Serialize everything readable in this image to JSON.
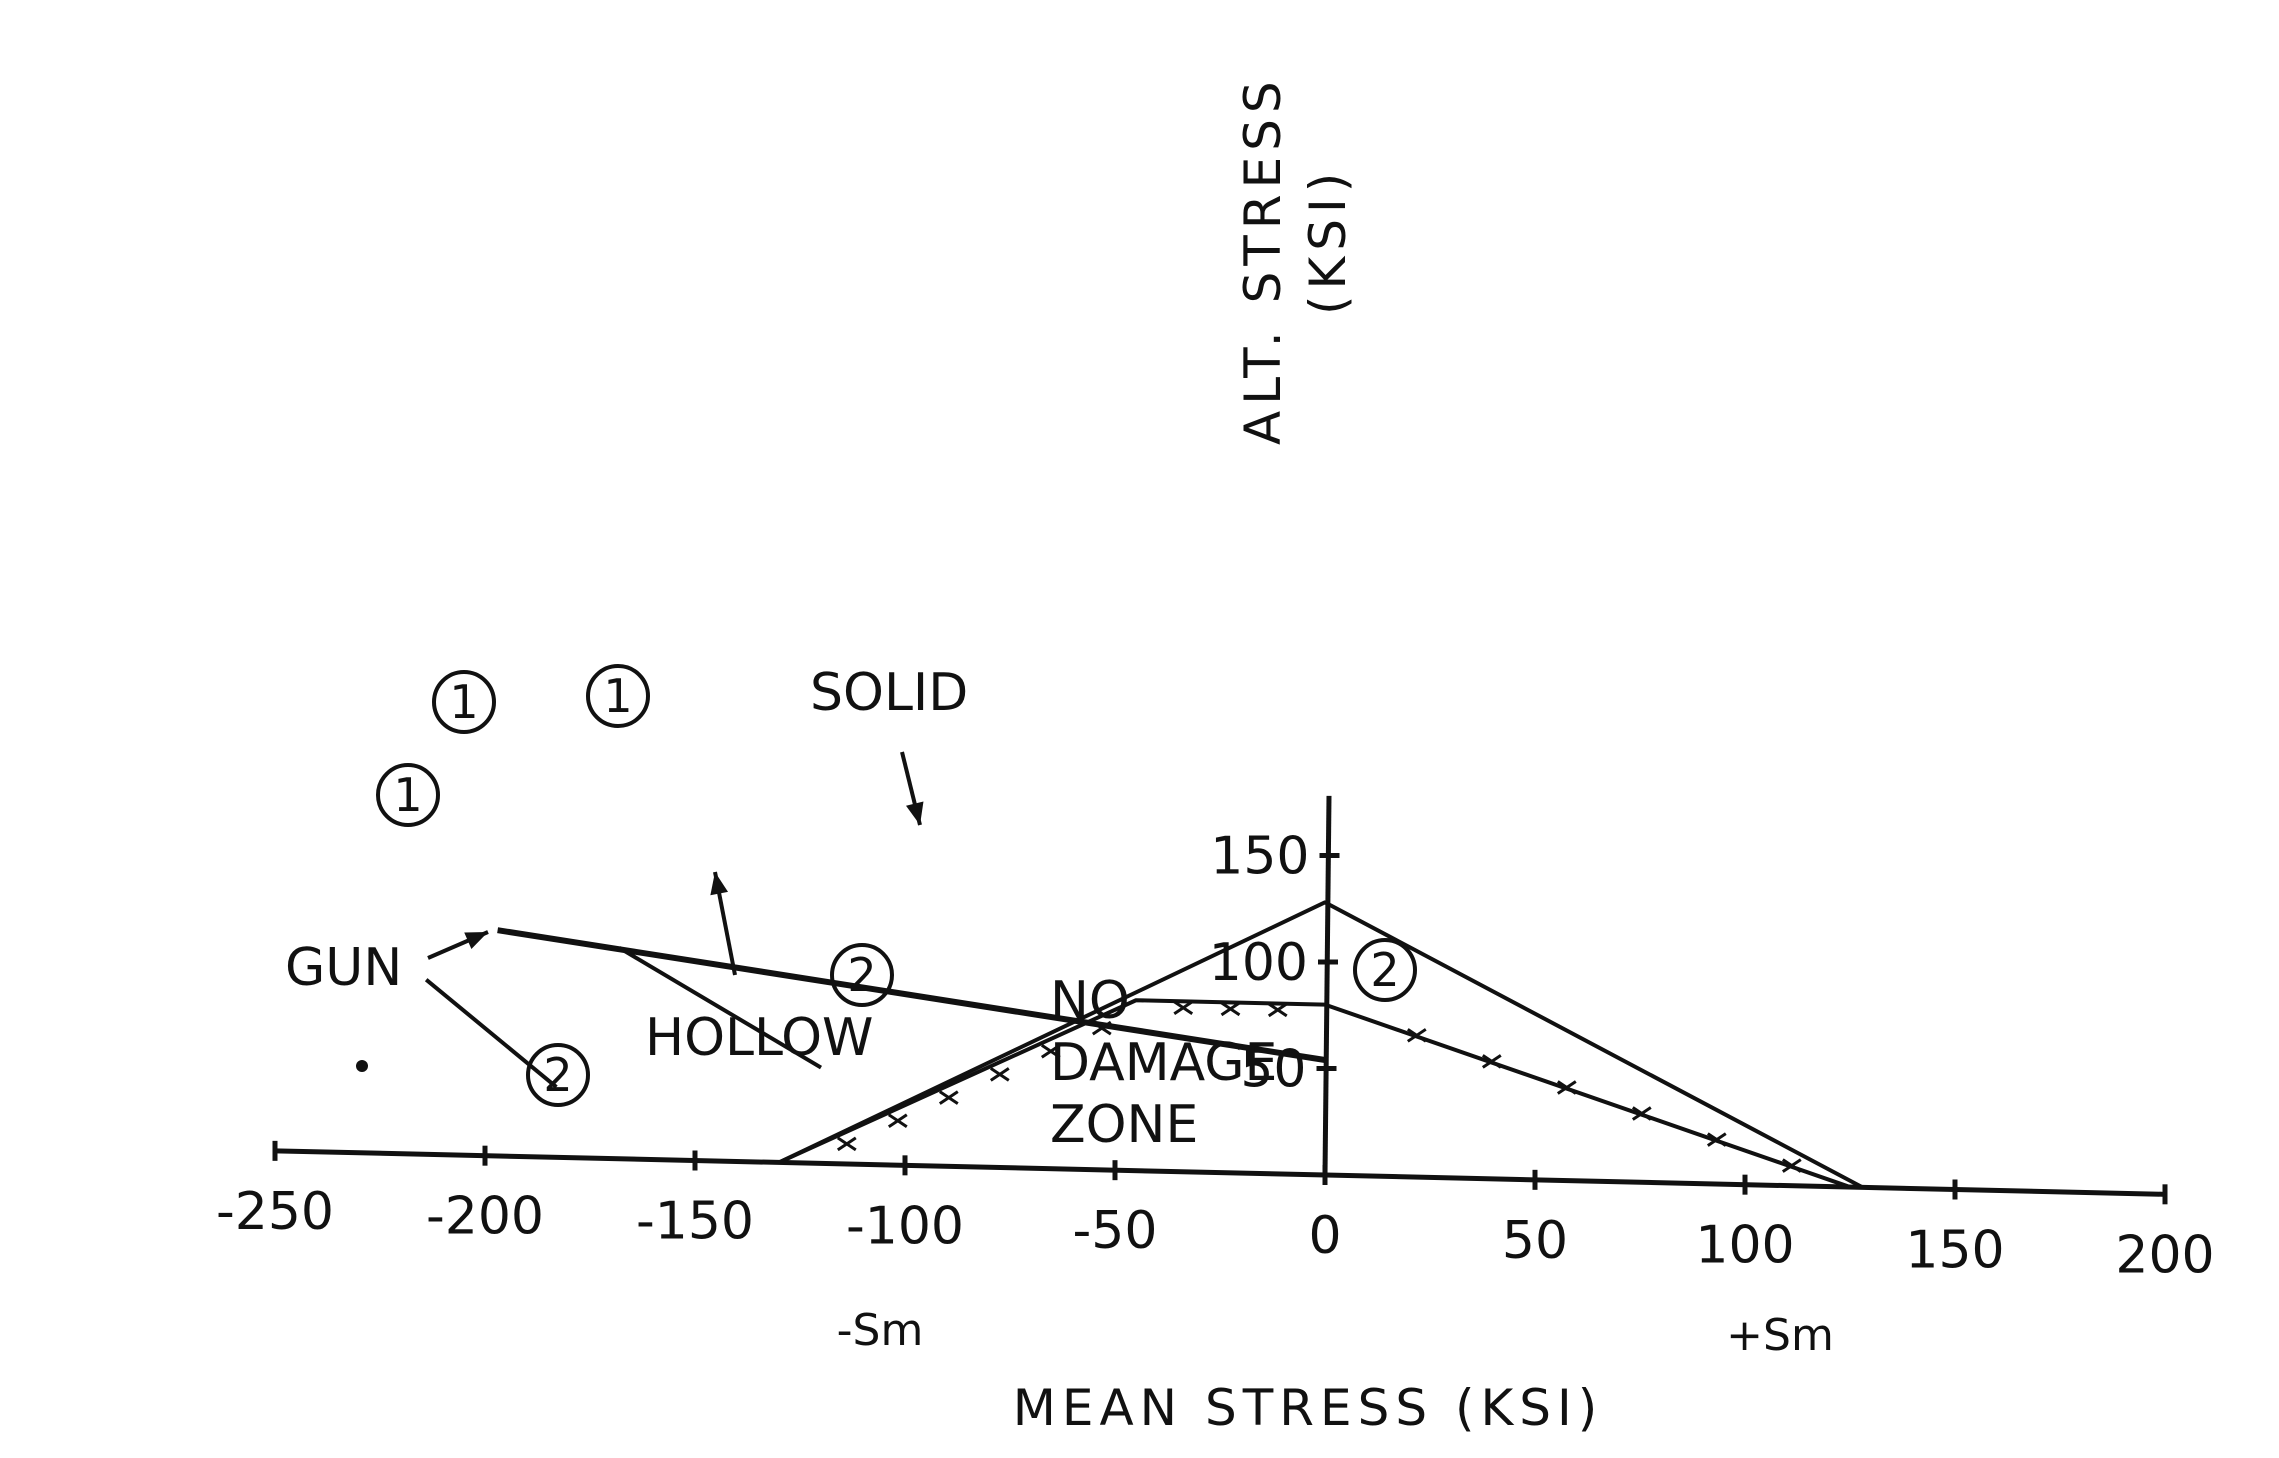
{
  "chart_data": {
    "type": "line",
    "title": "",
    "xlabel": "MEAN STRESS (KSI)",
    "ylabel_line1": "ALT. STRESS",
    "ylabel_line2": "(KSI)",
    "xlim": [
      -250,
      200
    ],
    "ylim": [
      0,
      180
    ],
    "x_ticks": [
      -250,
      -200,
      -150,
      -100,
      -50,
      0,
      50,
      100,
      150,
      200
    ],
    "x_tick_labels": [
      "-250",
      "-200",
      "-150",
      "-100",
      "-50",
      "0",
      "50",
      "100",
      "150",
      "200"
    ],
    "y_ticks": [
      50,
      100,
      150
    ],
    "y_tick_labels": [
      "50",
      "100",
      "150"
    ],
    "sm_labels": {
      "neg": "-Sm",
      "pos": "+Sm"
    },
    "series": [
      {
        "id": "outer-envelope",
        "points": [
          [
            -130,
            0
          ],
          [
            0,
            128
          ],
          [
            128,
            0
          ]
        ]
      },
      {
        "id": "no-damage-boundary",
        "points": [
          [
            -130,
            0
          ],
          [
            -45,
            80
          ],
          [
            0,
            80
          ],
          [
            125,
            0
          ]
        ]
      },
      {
        "id": "solid",
        "points": [
          [
            -197,
            106
          ],
          [
            0,
            54
          ]
        ]
      },
      {
        "id": "hollow",
        "points": [
          [
            -168,
            99
          ],
          [
            -120,
            45
          ]
        ]
      },
      {
        "id": "gun",
        "points": [
          [
            -214,
            82
          ],
          [
            -183,
            33
          ]
        ]
      }
    ],
    "annotations": {
      "solid": "SOLID",
      "hollow": "HOLLOW",
      "gun": "GUN",
      "zone_line1": "NO",
      "zone_line2": "DAMAGE",
      "zone_line3": "ZONE",
      "point_1": "1",
      "point_2": "2"
    }
  }
}
